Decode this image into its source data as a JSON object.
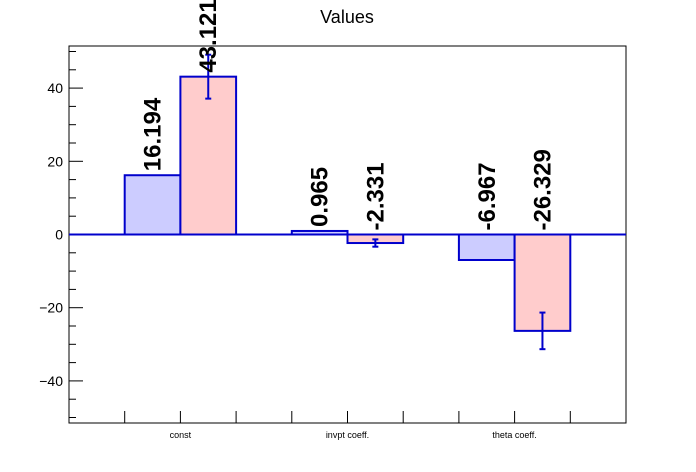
{
  "chart_data": {
    "type": "bar",
    "title": "Values",
    "xlabel": "",
    "ylabel": "",
    "categories": [
      "const",
      "invpt coeff.",
      "theta coeff."
    ],
    "ylim": [
      -51.5,
      51.5
    ],
    "yticks": [
      -40,
      -20,
      0,
      20,
      40
    ],
    "y_tick_labels": [
      "−40",
      "−20",
      "0",
      "20",
      "40"
    ],
    "series": [
      {
        "values": [
          16.194,
          0.965,
          -6.967
        ],
        "labels": [
          "16.194",
          "0.965",
          "-6.967"
        ],
        "errors": [
          0,
          0,
          0
        ],
        "fill": "#ccccff",
        "stroke": "#0000cc"
      },
      {
        "values": [
          43.121,
          -2.331,
          -26.329
        ],
        "labels": [
          "43.121",
          "-2.331",
          "-26.329"
        ],
        "errors": [
          6,
          1,
          5
        ],
        "fill": "#ffcccc",
        "stroke": "#0000cc"
      }
    ],
    "zero_line_color": "#0000cc",
    "grid": false,
    "legend": "none"
  }
}
